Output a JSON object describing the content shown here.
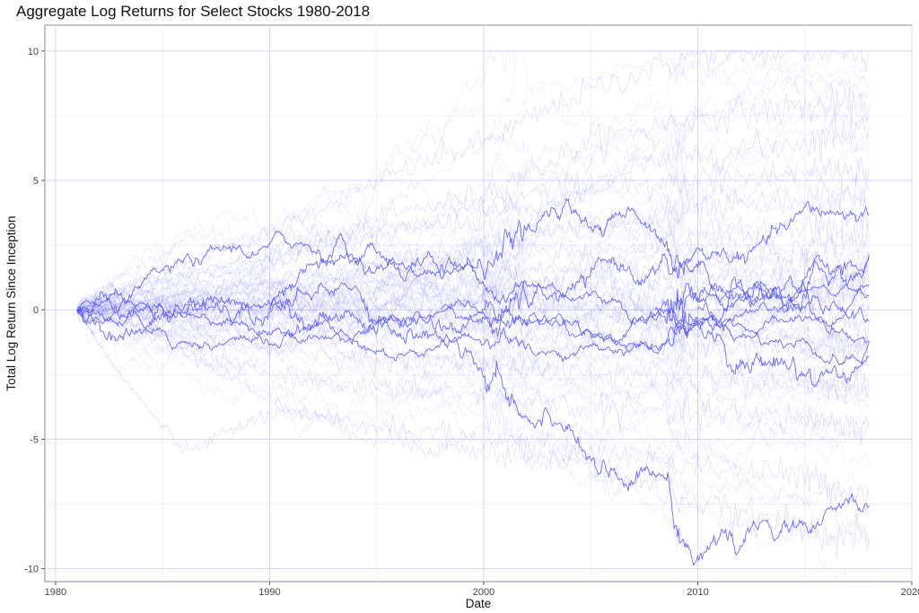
{
  "chart_data": {
    "type": "line",
    "title": "Aggregate Log Returns for Select Stocks 1980-2018",
    "xlabel": "Date",
    "ylabel": "Total Log Return Since Inception",
    "xlim": [
      1979.5,
      2020
    ],
    "ylim": [
      -10.5,
      11
    ],
    "x_ticks": [
      {
        "value": 1980,
        "label": "1980"
      },
      {
        "value": 1990,
        "label": "1990"
      },
      {
        "value": 2000,
        "label": "2000"
      },
      {
        "value": 2010,
        "label": "2010"
      },
      {
        "value": 2020,
        "label": "2020"
      }
    ],
    "y_ticks": [
      {
        "value": 10,
        "label": "10"
      },
      {
        "value": 5,
        "label": "5"
      },
      {
        "value": 0,
        "label": "0"
      },
      {
        "value": -5,
        "label": "-5"
      },
      {
        "value": -10,
        "label": "-10"
      }
    ],
    "x_minor": [
      1985,
      1995,
      2005,
      2015
    ],
    "y_minor": [
      7.5,
      2.5,
      -2.5,
      -7.5
    ],
    "grid": true,
    "legend": "none",
    "line_color": "#5555ff",
    "line_alpha": 0.1,
    "series_start": 1981,
    "series_end": 2018,
    "series": [
      {
        "x": [
          1981,
          1985,
          1990,
          1995,
          2000,
          2005,
          2010,
          2015,
          2018
        ],
        "y": [
          0,
          1.5,
          3.0,
          5.0,
          6.5,
          8.5,
          9.9,
          10,
          10
        ]
      },
      {
        "x": [
          1981,
          1985,
          1990,
          1995,
          2000,
          2005,
          2010,
          2015,
          2018
        ],
        "y": [
          0,
          1.2,
          2.0,
          3.5,
          4.5,
          6.5,
          7.5,
          7.8,
          7.9
        ]
      },
      {
        "x": [
          1981,
          1985,
          1990,
          1995,
          2000,
          2005,
          2010,
          2015,
          2018
        ],
        "y": [
          0,
          0.8,
          1.8,
          2.8,
          4.0,
          5.0,
          6.0,
          6.5,
          7.1
        ]
      },
      {
        "x": [
          1981,
          1985,
          1990,
          1995,
          2000,
          2005,
          2010,
          2015,
          2018
        ],
        "y": [
          0,
          1.0,
          2.2,
          3.0,
          3.5,
          4.5,
          5.0,
          5.3,
          5.5
        ]
      },
      {
        "x": [
          1981,
          1985,
          1990,
          1995,
          2000,
          2005,
          2010,
          2015,
          2018
        ],
        "y": [
          0,
          0.5,
          1.0,
          1.8,
          2.5,
          3.2,
          3.8,
          4.2,
          4.6
        ]
      },
      {
        "x": [
          1981,
          1985,
          1990,
          1995,
          2000,
          2005,
          2010,
          2015,
          2018
        ],
        "y": [
          0,
          0.3,
          0.8,
          1.2,
          2.0,
          2.3,
          2.8,
          3.2,
          3.5
        ]
      },
      {
        "x": [
          1981,
          1985,
          1990,
          1995,
          2000,
          2005,
          2010,
          2015,
          2018
        ],
        "y": [
          0,
          0.2,
          0.5,
          0.8,
          1.5,
          1.6,
          2.0,
          2.4,
          2.8
        ]
      },
      {
        "x": [
          1981,
          1985,
          1990,
          1995,
          2000,
          2005,
          2010,
          2015,
          2018
        ],
        "y": [
          0,
          0.1,
          0.3,
          0.5,
          1.0,
          1.0,
          1.3,
          1.6,
          2.0
        ]
      },
      {
        "x": [
          1981,
          1985,
          1990,
          1995,
          2000,
          2005,
          2010,
          2015,
          2018
        ],
        "y": [
          0,
          0.0,
          0.1,
          0.2,
          0.5,
          0.4,
          0.6,
          0.8,
          1.0
        ]
      },
      {
        "x": [
          1981,
          1985,
          1990,
          1995,
          2000,
          2005,
          2010,
          2015,
          2018
        ],
        "y": [
          0,
          -0.1,
          0.0,
          0.0,
          0.2,
          0.0,
          0.1,
          0.2,
          0.3
        ]
      },
      {
        "x": [
          1981,
          1985,
          1990,
          1995,
          2000,
          2005,
          2010,
          2015,
          2018
        ],
        "y": [
          0,
          -0.2,
          -0.3,
          -0.4,
          -0.2,
          -0.5,
          -0.4,
          -0.3,
          -0.4
        ]
      },
      {
        "x": [
          1981,
          1985,
          1990,
          1995,
          2000,
          2005,
          2010,
          2015,
          2018
        ],
        "y": [
          0,
          -0.4,
          -0.8,
          -1.0,
          -0.8,
          -1.2,
          -1.3,
          -1.4,
          -1.5
        ]
      },
      {
        "x": [
          1981,
          1985,
          1990,
          1995,
          2000,
          2005,
          2010,
          2015,
          2018
        ],
        "y": [
          0,
          -0.8,
          -1.5,
          -2.0,
          -2.0,
          -2.5,
          -2.6,
          -2.8,
          -3.0
        ]
      },
      {
        "x": [
          1981,
          1985,
          1990,
          1995,
          2000,
          2005,
          2010,
          2015,
          2018
        ],
        "y": [
          0,
          -1.2,
          -2.5,
          -3.0,
          -3.3,
          -3.8,
          -4.0,
          -4.2,
          -4.5
        ]
      },
      {
        "x": [
          1981,
          1983,
          1986,
          1990,
          1995,
          2000,
          2005,
          2010,
          2015,
          2018
        ],
        "y": [
          0,
          -2.5,
          -5.5,
          -4.0,
          -4.5,
          -5.0,
          -5.5,
          -6.0,
          -6.5,
          -7.2
        ]
      },
      {
        "x": [
          1981,
          1985,
          1990,
          1995,
          2000,
          2005,
          2010,
          2015,
          2018
        ],
        "y": [
          0,
          -1.0,
          -3.5,
          -5.0,
          -5.5,
          -6.0,
          -7.5,
          -8.5,
          -8.8
        ]
      }
    ]
  }
}
